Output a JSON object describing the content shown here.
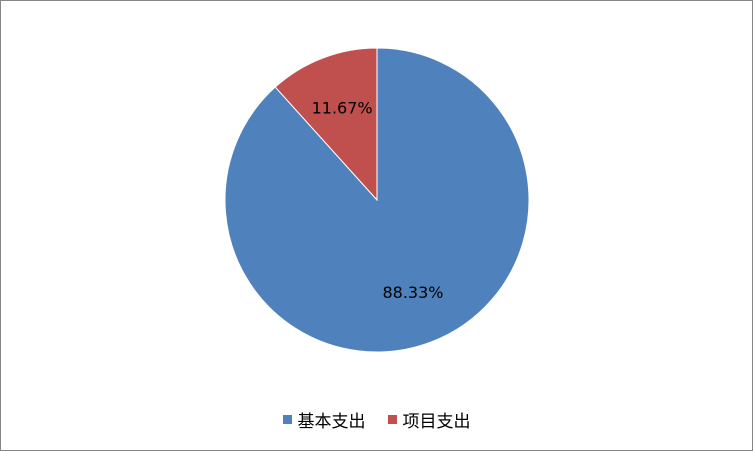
{
  "chart_data": {
    "type": "pie",
    "series": [
      {
        "name": "基本支出",
        "value": 88.33,
        "label": "88.33%",
        "color": "#4F81BD"
      },
      {
        "name": "项目支出",
        "value": 11.67,
        "label": "11.67%",
        "color": "#C0504D"
      }
    ],
    "legend_position": "bottom"
  }
}
